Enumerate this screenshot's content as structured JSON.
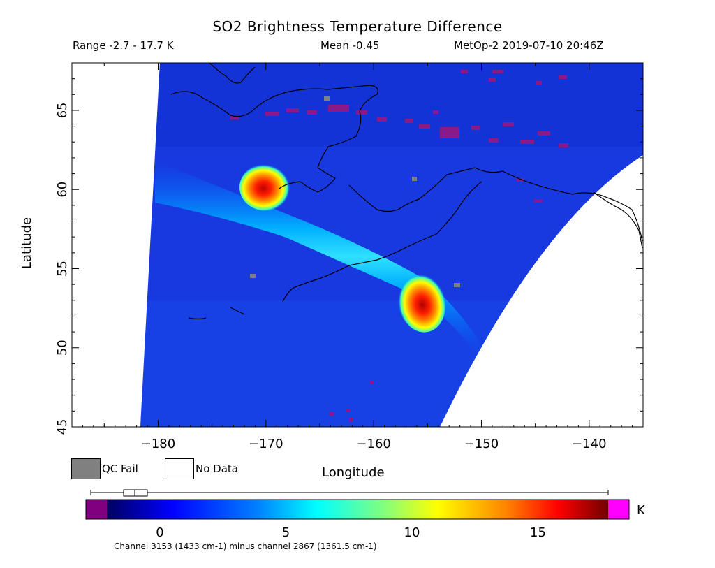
{
  "header": {
    "title": "SO2 Brightness Temperature Difference",
    "range": "Range -2.7 - 17.7 K",
    "mean": "Mean -0.45",
    "satellite_time": "MetOp-2 2019-07-10 20:46Z"
  },
  "map": {
    "x_label": "Longitude",
    "y_label": "Latitude",
    "x_ticks": [
      "-180",
      "-170",
      "-160",
      "-150",
      "-140"
    ],
    "y_ticks": [
      "45",
      "50",
      "55",
      "60",
      "65"
    ],
    "lon_range": [
      -188,
      -135
    ],
    "lat_range": [
      45,
      68
    ]
  },
  "legend": {
    "qc_fail_label": "QC Fail",
    "qc_fail_color": "#808080",
    "no_data_label": "No Data",
    "no_data_color": "#ffffff"
  },
  "colorbar": {
    "unit": "K",
    "ticks": [
      "0",
      "5",
      "10",
      "15"
    ],
    "caption": "Channel 3153 (1433 cm-1) minus channel 2867 (1361.5 cm-1)",
    "min": -2.7,
    "max": 17.7,
    "colors": [
      "#800080",
      "#000080",
      "#0000ff",
      "#0080ff",
      "#00ffff",
      "#80ff80",
      "#ffff00",
      "#ff8000",
      "#ff0000",
      "#800000",
      "#ff00ff"
    ]
  }
}
